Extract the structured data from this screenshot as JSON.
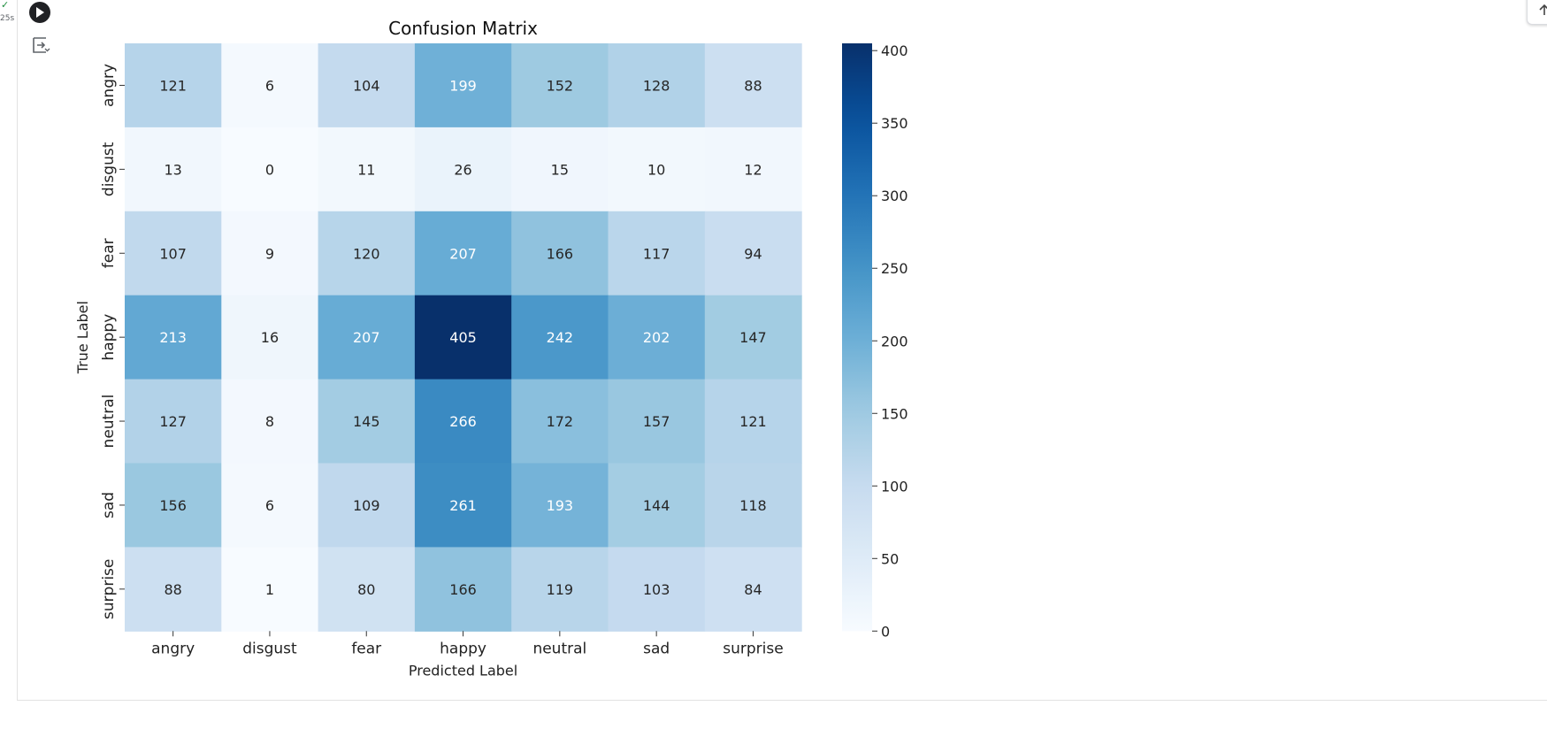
{
  "cell": {
    "status_check": "✓",
    "status_time": "25s",
    "run_icon": "play-icon",
    "toggle_icon": "output-toggle-icon",
    "scroll_top_icon": "arrow-up-icon"
  },
  "chart_data": {
    "type": "heatmap",
    "title": "Confusion Matrix",
    "xlabel": "Predicted Label",
    "ylabel": "True Label",
    "x_categories": [
      "angry",
      "disgust",
      "fear",
      "happy",
      "neutral",
      "sad",
      "surprise"
    ],
    "y_categories": [
      "angry",
      "disgust",
      "fear",
      "happy",
      "neutral",
      "sad",
      "surprise"
    ],
    "values": [
      [
        121,
        6,
        104,
        199,
        152,
        128,
        88
      ],
      [
        13,
        0,
        11,
        26,
        15,
        10,
        12
      ],
      [
        107,
        9,
        120,
        207,
        166,
        117,
        94
      ],
      [
        213,
        16,
        207,
        405,
        242,
        202,
        147
      ],
      [
        127,
        8,
        145,
        266,
        172,
        157,
        121
      ],
      [
        156,
        6,
        109,
        261,
        193,
        144,
        118
      ],
      [
        88,
        1,
        80,
        166,
        119,
        103,
        84
      ]
    ],
    "colormap": "Blues",
    "colorbar": {
      "min": 0,
      "max": 405,
      "ticks": [
        0,
        50,
        100,
        150,
        200,
        250,
        300,
        350,
        400
      ]
    },
    "annotation_colors": {
      "dark": "#262626",
      "light": "#ffffff"
    }
  }
}
